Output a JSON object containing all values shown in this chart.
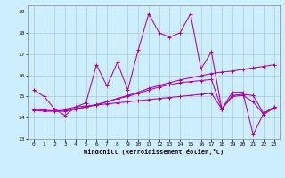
{
  "xlabel": "Windchill (Refroidissement éolien,°C)",
  "bg_color": "#cceeff",
  "grid_color": "#b0c8c8",
  "line_color": "#aa00aa",
  "xlim": [
    -0.5,
    23.5
  ],
  "ylim": [
    13,
    19.3
  ],
  "xticks": [
    0,
    1,
    2,
    3,
    4,
    5,
    6,
    7,
    8,
    9,
    10,
    11,
    12,
    13,
    14,
    15,
    16,
    17,
    18,
    19,
    20,
    21,
    22,
    23
  ],
  "yticks": [
    13,
    14,
    15,
    16,
    17,
    18,
    19
  ],
  "series": [
    [
      15.3,
      15.0,
      14.4,
      14.1,
      14.5,
      14.7,
      16.5,
      15.5,
      16.6,
      15.3,
      17.2,
      18.9,
      18.0,
      17.8,
      18.0,
      18.9,
      16.3,
      17.1,
      14.4,
      15.2,
      15.2,
      13.2,
      14.2,
      14.5
    ],
    [
      14.4,
      14.4,
      14.4,
      14.4,
      14.5,
      14.55,
      14.6,
      14.65,
      14.7,
      14.75,
      14.8,
      14.85,
      14.9,
      14.95,
      15.0,
      15.05,
      15.1,
      15.15,
      14.4,
      15.05,
      15.1,
      15.05,
      14.2,
      14.5
    ],
    [
      14.4,
      14.35,
      14.3,
      14.3,
      14.4,
      14.5,
      14.6,
      14.75,
      14.9,
      15.0,
      15.15,
      15.3,
      15.45,
      15.55,
      15.65,
      15.7,
      15.75,
      15.8,
      14.4,
      15.0,
      15.05,
      14.75,
      14.15,
      14.45
    ],
    [
      14.35,
      14.3,
      14.3,
      14.35,
      14.42,
      14.5,
      14.62,
      14.75,
      14.9,
      15.05,
      15.2,
      15.38,
      15.52,
      15.65,
      15.78,
      15.88,
      15.98,
      16.08,
      16.15,
      16.2,
      16.28,
      16.35,
      16.42,
      16.5
    ]
  ]
}
